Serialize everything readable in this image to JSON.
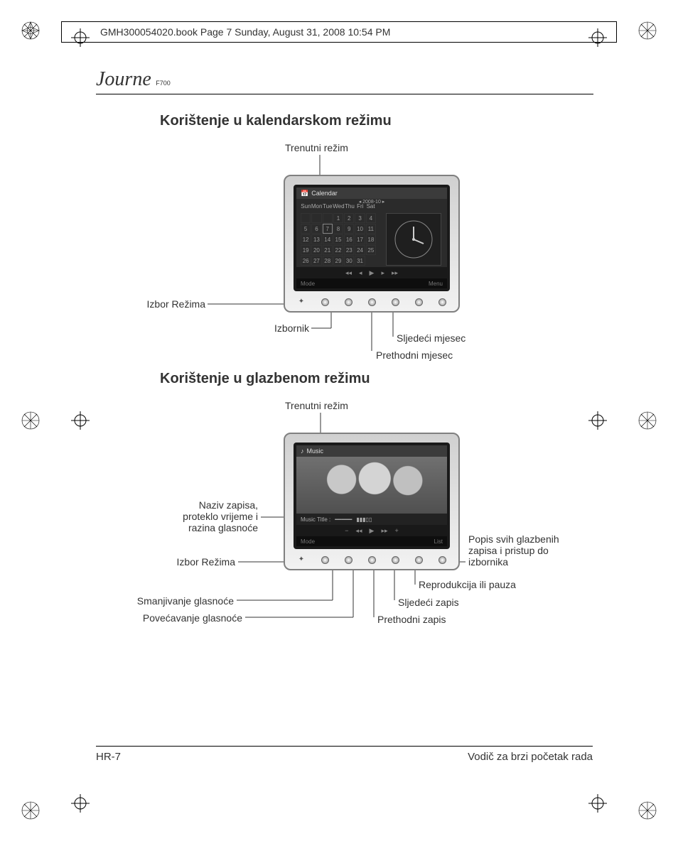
{
  "print_header": "GMH300054020.book  Page 7  Sunday, August 31, 2008  10:54 PM",
  "logo": {
    "brand": "Journe",
    "model": "F700"
  },
  "section_calendar": {
    "title": "Korištenje u kalendarskom režimu",
    "labels": {
      "current_mode": "Trenutni režim",
      "mode_select": "Izbor Režima",
      "menu": "Izbornik",
      "prev_month": "Prethodni mjesec",
      "next_month": "Sljedeći mjesec"
    },
    "device": {
      "topbar_icon": "📅",
      "topbar_text": "Calendar",
      "month_indicator": "◂ 2008-10 ▸",
      "day_headers": [
        "Sun",
        "Mon",
        "Tue",
        "Wed",
        "Thu",
        "Fri",
        "Sat"
      ],
      "cells": [
        "",
        "",
        "",
        "1",
        "2",
        "3",
        "4",
        "5",
        "6",
        "7",
        "8",
        "9",
        "10",
        "11",
        "12",
        "13",
        "14",
        "15",
        "16",
        "17",
        "18",
        "19",
        "20",
        "21",
        "22",
        "23",
        "24",
        "25",
        "26",
        "27",
        "28",
        "29",
        "30",
        "31"
      ],
      "highlight_index": 9,
      "foot_left": "Mode",
      "foot_right": "Menu",
      "ctrl_icons": [
        "◂◂",
        "◂",
        "▶",
        "▸",
        "▸▸"
      ]
    }
  },
  "section_music": {
    "title": "Korištenje u glazbenom režimu",
    "labels": {
      "current_mode": "Trenutni režim",
      "track_info": "Naziv zapisa, proteklo vrijeme i razina glasnoće",
      "mode_select": "Izbor Režima",
      "vol_down": "Smanjivanje glasnoće",
      "vol_up": "Povećavanje glasnoće",
      "prev_track": "Prethodni zapis",
      "next_track": "Sljedeći zapis",
      "play_pause": "Reprodukcija ili pauza",
      "list_menu": "Popis svih glazbenih zapisa i pristup do izbornika"
    },
    "device": {
      "topbar_icon": "♪",
      "topbar_text": "Music",
      "music_title_label": "Music Title :",
      "ctrl_icons": [
        "−",
        "◂◂",
        "▶",
        "▸▸",
        "+"
      ],
      "foot_left": "Mode",
      "foot_right": "List"
    }
  },
  "footer": {
    "page": "HR-7",
    "doc_title": "Vodič za brzi početak rada"
  },
  "colors": {
    "text": "#333333",
    "line": "#333333",
    "device_border": "#808080",
    "screen_bg": "#1a1a1a"
  }
}
